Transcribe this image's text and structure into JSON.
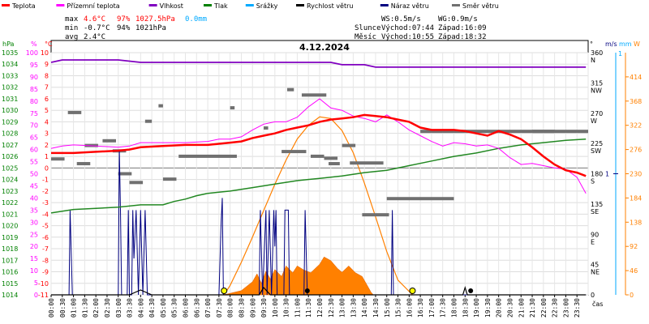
{
  "chart_data": {
    "type": "line",
    "title": "4.12.2024",
    "legend": [
      {
        "name": "Teplota",
        "color": "#ff0000"
      },
      {
        "name": "Přízemní teplota",
        "color": "#ff00ff"
      },
      {
        "name": "Vlhkost",
        "color": "#8000c0"
      },
      {
        "name": "Tlak",
        "color": "#008000"
      },
      {
        "name": "Srážky",
        "color": "#00aaff"
      },
      {
        "name": "Rychlost větru",
        "color": "#000000"
      },
      {
        "name": "Náraz větru",
        "color": "#000080"
      },
      {
        "name": "Směr větru",
        "color": "#707070"
      }
    ],
    "stats": {
      "max_label": "max",
      "min_label": "min",
      "avg_label": "avg",
      "temp_max": "4.6°C",
      "temp_min": "-0.7°C",
      "temp_avg": "2.4°C",
      "hum_max": "97%",
      "hum_min": "94%",
      "press_max": "1027.5hPa",
      "press_min": "1021hPa",
      "precip": "0.0mm",
      "ws": "WS:0.5m/s",
      "wg": "WG:0.9m/s",
      "sun_label": "Slunce",
      "moon_label": "Měsíc",
      "sun_rise": "Východ:07:44",
      "sun_set": "Západ:16:09",
      "moon_rise": "Východ:10:55",
      "moon_set": "Západ:18:32"
    },
    "axis_units": {
      "hpa": "hPa",
      "pct": "%",
      "degc": "°C",
      "deg": "°",
      "ms": "m/s",
      "mm": "mm",
      "w": "W"
    },
    "x_label": "čas",
    "x_ticks": [
      "00:00",
      "00:30",
      "01:00",
      "01:30",
      "02:00",
      "02:30",
      "03:00",
      "03:30",
      "04:00",
      "04:30",
      "05:00",
      "05:30",
      "06:00",
      "06:30",
      "07:00",
      "07:30",
      "08:00",
      "08:30",
      "09:00",
      "09:30",
      "10:00",
      "10:30",
      "11:00",
      "11:30",
      "12:00",
      "12:30",
      "13:00",
      "13:30",
      "14:00",
      "14:30",
      "15:00",
      "15:30",
      "16:00",
      "16:30",
      "17:00",
      "17:30",
      "18:00",
      "18:30",
      "19:00",
      "19:30",
      "20:00",
      "20:30",
      "21:00",
      "21:30",
      "22:00",
      "22:30",
      "23:00",
      "23:30"
    ],
    "y_temp": {
      "ticks": [
        "10",
        "9",
        "8",
        "7",
        "6",
        "5",
        "4",
        "3",
        "2",
        "1",
        "0",
        "-1",
        "-2",
        "-3",
        "-4",
        "-5",
        "-6",
        "-7",
        "-8",
        "-9",
        "-10",
        "-11"
      ],
      "range": [
        -11,
        10
      ]
    },
    "y_hum": {
      "ticks": [
        "100",
        "95",
        "90",
        "85",
        "80",
        "75",
        "70",
        "65",
        "60",
        "55",
        "50",
        "45",
        "40",
        "35",
        "30",
        "25",
        "20",
        "15",
        "10",
        "5",
        "0"
      ],
      "range": [
        0,
        100
      ]
    },
    "y_press": {
      "ticks": [
        "1035",
        "1034",
        "1033",
        "1032",
        "1031",
        "1030",
        "1029",
        "1028",
        "1027",
        "1026",
        "1025",
        "1024",
        "1023",
        "1022",
        "1021",
        "1020",
        "1019",
        "1018",
        "1017",
        "1016",
        "1015",
        "1014"
      ],
      "range": [
        1014,
        1035
      ]
    },
    "y_dir": {
      "ticks": [
        {
          "v": "360",
          "d": "N"
        },
        {
          "v": "315",
          "d": "NW"
        },
        {
          "v": "270",
          "d": "W"
        },
        {
          "v": "225",
          "d": "SW"
        },
        {
          "v": "180",
          "d": "S"
        },
        {
          "v": "135",
          "d": "SE"
        },
        {
          "v": "90",
          "d": "E"
        },
        {
          "v": "45",
          "d": "NE"
        },
        {
          "v": "0",
          "d": ""
        }
      ],
      "range": [
        0,
        360
      ]
    },
    "y_wind": {
      "ticks": [
        "1"
      ],
      "range": [
        0,
        2
      ]
    },
    "y_mm": {
      "ticks": [
        "1"
      ],
      "range": [
        0,
        2
      ]
    },
    "y_solar": {
      "ticks": [
        "414",
        "368",
        "322",
        "276",
        "230",
        "184",
        "138",
        "92",
        "46",
        "0"
      ],
      "range": [
        0,
        460
      ]
    },
    "series": {
      "temperature": [
        [
          0,
          1.3
        ],
        [
          1,
          1.3
        ],
        [
          2,
          1.4
        ],
        [
          3,
          1.5
        ],
        [
          3.5,
          1.6
        ],
        [
          4,
          1.8
        ],
        [
          5,
          1.9
        ],
        [
          6,
          2.0
        ],
        [
          7,
          2.0
        ],
        [
          7.5,
          2.1
        ],
        [
          8,
          2.2
        ],
        [
          8.5,
          2.3
        ],
        [
          9,
          2.6
        ],
        [
          9.5,
          2.8
        ],
        [
          10,
          3.0
        ],
        [
          10.5,
          3.3
        ],
        [
          11,
          3.5
        ],
        [
          11.5,
          3.7
        ],
        [
          12,
          4.0
        ],
        [
          12.5,
          4.2
        ],
        [
          13,
          4.3
        ],
        [
          13.5,
          4.4
        ],
        [
          14,
          4.6
        ],
        [
          14.5,
          4.5
        ],
        [
          15,
          4.4
        ],
        [
          15.5,
          4.2
        ],
        [
          16,
          4.0
        ],
        [
          16.5,
          3.5
        ],
        [
          17,
          3.3
        ],
        [
          17.5,
          3.3
        ],
        [
          18,
          3.3
        ],
        [
          18.5,
          3.2
        ],
        [
          19,
          3.0
        ],
        [
          19.5,
          2.8
        ],
        [
          20,
          3.2
        ],
        [
          20.5,
          2.9
        ],
        [
          21,
          2.5
        ],
        [
          21.5,
          1.8
        ],
        [
          22,
          1.0
        ],
        [
          22.5,
          0.3
        ],
        [
          23,
          -0.2
        ],
        [
          23.5,
          -0.4
        ],
        [
          23.9,
          -0.7
        ]
      ],
      "ground_temperature": [
        [
          0,
          1.7
        ],
        [
          0.5,
          1.9
        ],
        [
          1,
          2.0
        ],
        [
          2,
          1.9
        ],
        [
          3,
          1.8
        ],
        [
          3.5,
          1.9
        ],
        [
          4,
          2.2
        ],
        [
          5,
          2.2
        ],
        [
          6,
          2.2
        ],
        [
          7,
          2.3
        ],
        [
          7.5,
          2.5
        ],
        [
          8,
          2.5
        ],
        [
          8.5,
          2.7
        ],
        [
          9,
          3.3
        ],
        [
          9.5,
          3.8
        ],
        [
          10,
          4.0
        ],
        [
          10.5,
          4.0
        ],
        [
          11,
          4.4
        ],
        [
          11.5,
          5.3
        ],
        [
          12,
          6.0
        ],
        [
          12.5,
          5.2
        ],
        [
          13,
          5.0
        ],
        [
          13.5,
          4.5
        ],
        [
          14,
          4.3
        ],
        [
          14.5,
          4.0
        ],
        [
          15,
          4.6
        ],
        [
          15.5,
          4.0
        ],
        [
          16,
          3.3
        ],
        [
          16.5,
          2.8
        ],
        [
          17,
          2.3
        ],
        [
          17.5,
          1.9
        ],
        [
          18,
          2.2
        ],
        [
          18.5,
          2.1
        ],
        [
          19,
          1.9
        ],
        [
          19.5,
          2.0
        ],
        [
          20,
          1.7
        ],
        [
          20.5,
          0.9
        ],
        [
          21,
          0.3
        ],
        [
          21.5,
          0.4
        ],
        [
          22,
          0.2
        ],
        [
          22.5,
          0.0
        ],
        [
          23,
          -0.1
        ],
        [
          23.5,
          -0.8
        ],
        [
          23.9,
          -2.2
        ]
      ],
      "humidity": [
        [
          0,
          96
        ],
        [
          0.5,
          97
        ],
        [
          1,
          97
        ],
        [
          2,
          97
        ],
        [
          3,
          97
        ],
        [
          4,
          96
        ],
        [
          5,
          96
        ],
        [
          6,
          96
        ],
        [
          7,
          96
        ],
        [
          8,
          96
        ],
        [
          9,
          96
        ],
        [
          10,
          96
        ],
        [
          11,
          96
        ],
        [
          12,
          96
        ],
        [
          12.5,
          96
        ],
        [
          13,
          95
        ],
        [
          14,
          95
        ],
        [
          14.5,
          94
        ],
        [
          15,
          94
        ],
        [
          16,
          94
        ],
        [
          17,
          94
        ],
        [
          18,
          94
        ],
        [
          19,
          94
        ],
        [
          20,
          94
        ],
        [
          21,
          94
        ],
        [
          22,
          94
        ],
        [
          23,
          94
        ],
        [
          23.9,
          94
        ]
      ],
      "pressure": [
        [
          0,
          1021.1
        ],
        [
          1,
          1021.4
        ],
        [
          2,
          1021.5
        ],
        [
          3,
          1021.6
        ],
        [
          4,
          1021.8
        ],
        [
          5,
          1021.8
        ],
        [
          5.5,
          1022.1
        ],
        [
          6,
          1022.3
        ],
        [
          6.5,
          1022.6
        ],
        [
          7,
          1022.8
        ],
        [
          7.5,
          1022.9
        ],
        [
          8,
          1023.0
        ],
        [
          9,
          1023.3
        ],
        [
          10,
          1023.6
        ],
        [
          11,
          1023.9
        ],
        [
          12,
          1024.1
        ],
        [
          13,
          1024.3
        ],
        [
          14,
          1024.6
        ],
        [
          15,
          1024.8
        ],
        [
          16,
          1025.2
        ],
        [
          17,
          1025.6
        ],
        [
          18,
          1026.0
        ],
        [
          19,
          1026.3
        ],
        [
          20,
          1026.7
        ],
        [
          21,
          1027.0
        ],
        [
          22,
          1027.2
        ],
        [
          23,
          1027.4
        ],
        [
          23.9,
          1027.5
        ]
      ],
      "wind_speed": [
        [
          0,
          0
        ],
        [
          3.5,
          0
        ],
        [
          4,
          0.04
        ],
        [
          4.5,
          0
        ],
        [
          9.3,
          0
        ],
        [
          9.5,
          0.06
        ],
        [
          9.8,
          0
        ],
        [
          18.4,
          0
        ],
        [
          18.5,
          0.06
        ],
        [
          18.6,
          0
        ],
        [
          23.9,
          0
        ]
      ],
      "wind_gust": [
        [
          0,
          0
        ],
        [
          0.8,
          0
        ],
        [
          0.85,
          0.7
        ],
        [
          0.95,
          0
        ],
        [
          3.0,
          0
        ],
        [
          3.05,
          1.2
        ],
        [
          3.1,
          0.7
        ],
        [
          3.15,
          0
        ],
        [
          3.4,
          0
        ],
        [
          3.45,
          0.7
        ],
        [
          3.5,
          0
        ],
        [
          3.6,
          0
        ],
        [
          3.65,
          0.7
        ],
        [
          3.7,
          0.3
        ],
        [
          3.8,
          0.7
        ],
        [
          3.9,
          0
        ],
        [
          4.0,
          0.7
        ],
        [
          4.1,
          0
        ],
        [
          4.2,
          0.7
        ],
        [
          4.3,
          0
        ],
        [
          7.5,
          0
        ],
        [
          7.6,
          0.6
        ],
        [
          7.65,
          0.8
        ],
        [
          7.7,
          0
        ],
        [
          9.3,
          0
        ],
        [
          9.35,
          0.7
        ],
        [
          9.45,
          0
        ],
        [
          9.6,
          0.7
        ],
        [
          9.65,
          0
        ],
        [
          9.75,
          0.7
        ],
        [
          9.85,
          0
        ],
        [
          9.95,
          0.7
        ],
        [
          10.0,
          0.4
        ],
        [
          10.05,
          0.7
        ],
        [
          10.1,
          0
        ],
        [
          10.4,
          0
        ],
        [
          10.45,
          0.7
        ],
        [
          10.6,
          0.7
        ],
        [
          10.65,
          0
        ],
        [
          11.3,
          0
        ],
        [
          11.35,
          0.7
        ],
        [
          11.45,
          0
        ],
        [
          15.2,
          0
        ],
        [
          15.25,
          0.7
        ],
        [
          15.3,
          0
        ],
        [
          23.9,
          0
        ]
      ],
      "solar": [
        [
          7.7,
          0
        ],
        [
          8,
          3
        ],
        [
          8.5,
          8
        ],
        [
          9,
          25
        ],
        [
          9.2,
          40
        ],
        [
          9.4,
          22
        ],
        [
          9.6,
          45
        ],
        [
          9.8,
          30
        ],
        [
          10,
          48
        ],
        [
          10.3,
          35
        ],
        [
          10.5,
          55
        ],
        [
          10.8,
          42
        ],
        [
          11,
          55
        ],
        [
          11.3,
          47
        ],
        [
          11.6,
          42
        ],
        [
          12,
          58
        ],
        [
          12.2,
          72
        ],
        [
          12.5,
          65
        ],
        [
          12.8,
          50
        ],
        [
          13,
          43
        ],
        [
          13.3,
          55
        ],
        [
          13.6,
          42
        ],
        [
          13.9,
          35
        ],
        [
          14.1,
          20
        ],
        [
          14.3,
          5
        ],
        [
          14.4,
          0
        ]
      ],
      "solar_max_arc": [
        [
          7.73,
          0
        ],
        [
          8,
          18
        ],
        [
          8.5,
          62
        ],
        [
          9,
          110
        ],
        [
          9.5,
          160
        ],
        [
          10,
          210
        ],
        [
          10.5,
          256
        ],
        [
          11,
          296
        ],
        [
          11.5,
          322
        ],
        [
          12,
          338
        ],
        [
          12.5,
          335
        ],
        [
          13,
          312
        ],
        [
          13.5,
          270
        ],
        [
          14,
          212
        ],
        [
          14.5,
          148
        ],
        [
          15,
          82
        ],
        [
          15.5,
          28
        ],
        [
          16.15,
          0
        ]
      ],
      "sun_markers": [
        {
          "t": 7.73,
          "type": "rise"
        },
        {
          "t": 16.15,
          "type": "set"
        }
      ],
      "wind_direction_marks": [
        [
          0,
          202,
          0.6
        ],
        [
          0.75,
          271,
          0.6
        ],
        [
          1.15,
          195,
          0.6
        ],
        [
          1.5,
          222,
          0.6
        ],
        [
          2.3,
          229,
          0.6
        ],
        [
          2.75,
          214,
          0.6
        ],
        [
          3.0,
          180,
          0.6
        ],
        [
          3.5,
          167,
          0.6
        ],
        [
          4.2,
          258,
          0.3
        ],
        [
          4.8,
          281,
          0.2
        ],
        [
          5.0,
          172,
          0.6
        ],
        [
          5.7,
          206,
          2.6
        ],
        [
          8.0,
          278,
          0.2
        ],
        [
          9.5,
          248,
          0.2
        ],
        [
          10.3,
          213,
          1.1
        ],
        [
          10.55,
          305,
          0.3
        ],
        [
          11.2,
          297,
          1.1
        ],
        [
          11.6,
          206,
          0.6
        ],
        [
          12.2,
          203,
          0.6
        ],
        [
          12.4,
          195,
          0.5
        ],
        [
          13.0,
          222,
          0.6
        ],
        [
          13.35,
          196,
          1.5
        ],
        [
          13.9,
          119,
          1.2
        ],
        [
          15.0,
          143,
          3.0
        ],
        [
          16.5,
          243,
          6.0
        ],
        [
          21.5,
          243,
          2.5
        ]
      ]
    }
  }
}
